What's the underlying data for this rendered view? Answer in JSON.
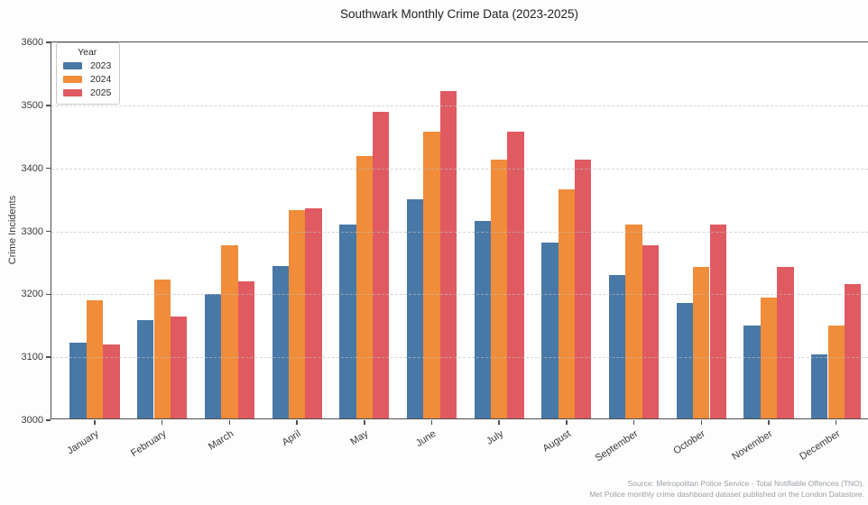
{
  "figure": {
    "title": "Southwark Monthly Crime Data (2023-2025)",
    "source_line1": "Source: Metropolitan Police Service - Total Notifiable Offences (TNO).",
    "source_line2": "Met Police monthly crime dashboard dataset published on the London Datastore."
  },
  "chart_data": {
    "type": "bar",
    "title": "Southwark Monthly Crime Data (2023-2025)",
    "xlabel": "",
    "ylabel": "Crime Incidents",
    "ylim": [
      3000,
      3600
    ],
    "yticks": [
      3000,
      3100,
      3200,
      3300,
      3400,
      3500,
      3600
    ],
    "grid": "horizontal-dashed",
    "legend_title": "Year",
    "legend_position": "upper-left",
    "categories": [
      "January",
      "February",
      "March",
      "April",
      "May",
      "June",
      "July",
      "August",
      "September",
      "October",
      "November",
      "December"
    ],
    "series": [
      {
        "name": "2023",
        "color": "#4878a6",
        "values": [
          3121,
          3156,
          3198,
          3242,
          3308,
          3348,
          3313,
          3279,
          3228,
          3184,
          3148,
          3102
        ]
      },
      {
        "name": "2024",
        "color": "#f08c3a",
        "values": [
          3188,
          3221,
          3275,
          3331,
          3417,
          3455,
          3411,
          3364,
          3308,
          3240,
          3192,
          3147
        ]
      },
      {
        "name": "2025",
        "color": "#e05a62",
        "values": [
          3118,
          3162,
          3218,
          3334,
          3487,
          3520,
          3456,
          3411,
          3275,
          3308,
          3241,
          3214
        ]
      }
    ]
  }
}
